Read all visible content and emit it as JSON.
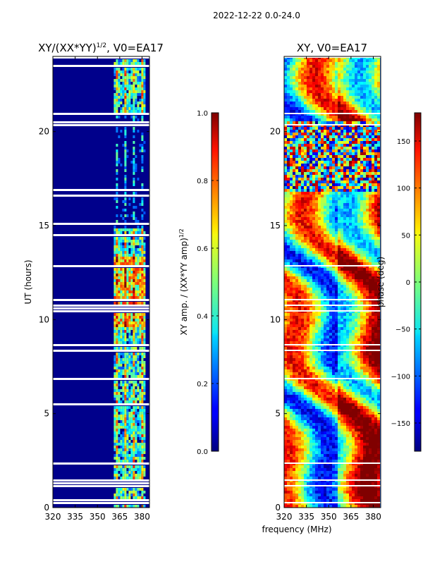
{
  "suptitle": "2022-12-22 0.0-24.0",
  "shared_xlabel": "frequency (MHz)",
  "chart_data": [
    {
      "type": "heatmap",
      "title": "XY/(XX*YY)",
      "title_superscript": "1/2",
      "title_suffix": ", V0=EA17",
      "xlabel": "",
      "ylabel": "UT (hours)",
      "x_ticks": [
        320,
        335,
        350,
        365,
        380
      ],
      "y_ticks": [
        0,
        5,
        10,
        15,
        20
      ],
      "xlim": [
        320,
        385
      ],
      "ylim": [
        0,
        24
      ],
      "colormap": "jet",
      "colorbar": {
        "label": "XY amp. / (XX*YY amp)",
        "label_superscript": "1/2",
        "range": [
          0.0,
          1.0
        ],
        "ticks": [
          "0.0",
          "0.2",
          "0.4",
          "0.6",
          "0.8",
          "1.0"
        ]
      },
      "description_values": {
        "background_level": 0.1,
        "bright_band_mhz": [
          361,
          381
        ],
        "bright_band_level": 0.5
      }
    },
    {
      "type": "heatmap",
      "title": "XY, V0=EA17",
      "xlabel": "frequency (MHz)",
      "ylabel": "",
      "x_ticks": [
        320,
        335,
        350,
        365,
        380
      ],
      "y_ticks": [
        0,
        5,
        10,
        15,
        20
      ],
      "xlim": [
        320,
        385
      ],
      "ylim": [
        0,
        24
      ],
      "colormap": "jet",
      "colorbar": {
        "label": "phase (deg)",
        "range": [
          -180,
          180
        ],
        "ticks": [
          "−150",
          "−100",
          "−50",
          "0",
          "50",
          "100",
          "150"
        ]
      }
    }
  ]
}
